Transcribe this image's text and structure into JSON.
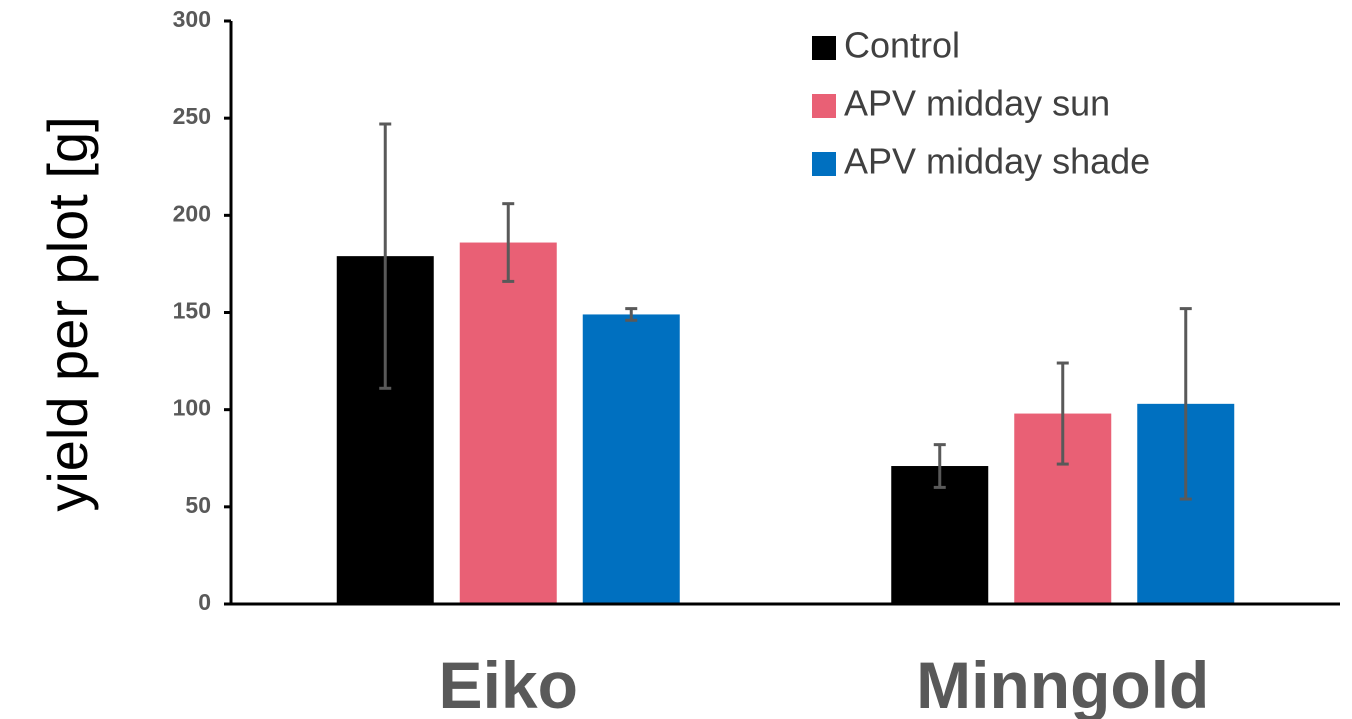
{
  "chart_data": {
    "type": "bar",
    "title": "",
    "xlabel": "",
    "ylabel": "yield per plot [g]",
    "ylim": [
      0,
      300
    ],
    "yticks": [
      0,
      50,
      100,
      150,
      200,
      250,
      300
    ],
    "categories": [
      "Eiko",
      "Minngold"
    ],
    "grid": false,
    "legend_position": "top-right",
    "series": [
      {
        "name": "Control",
        "color": "#000000",
        "values": [
          179,
          71
        ],
        "errors": [
          68,
          11
        ]
      },
      {
        "name": "APV midday sun",
        "color": "#e96075",
        "values": [
          186,
          98
        ],
        "errors": [
          20,
          26
        ]
      },
      {
        "name": "APV midday shade",
        "color": "#0070c0",
        "values": [
          149,
          103
        ],
        "errors": [
          3,
          49
        ]
      }
    ],
    "colors": {
      "axis": "#000000",
      "tick_text": "#595959",
      "error_bar": "#595959"
    }
  }
}
